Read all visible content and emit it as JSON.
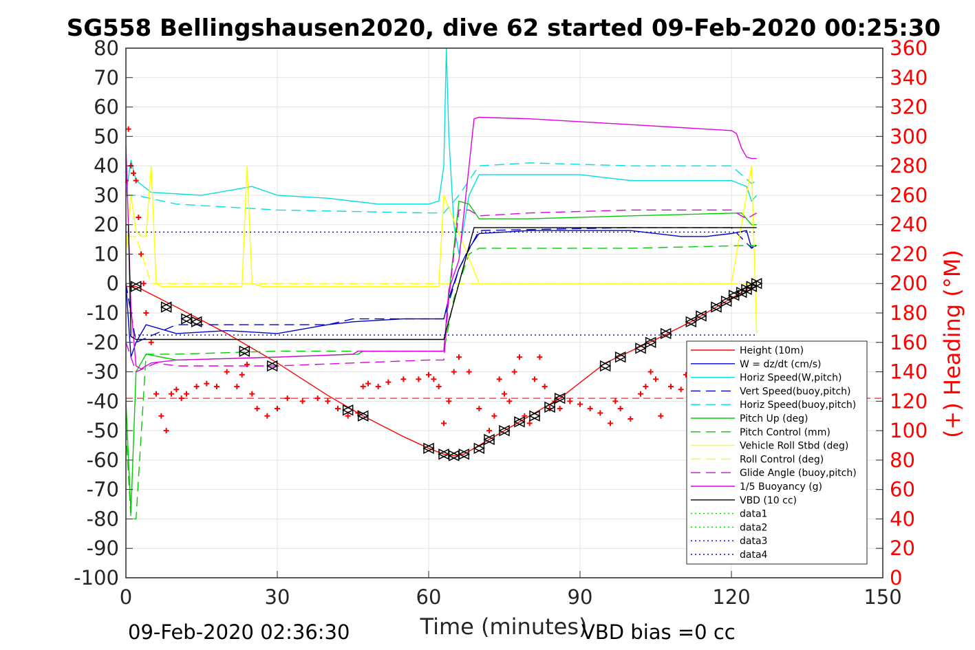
{
  "chart_data": {
    "type": "line",
    "title": "SG558 Bellingshausen2020, dive 62 started 09-Feb-2020 00:25:30",
    "xlabel": "Time (minutes)",
    "ylabel_right": "(+) Heading (°M)",
    "footer_left": "09-Feb-2020 02:36:30",
    "footer_right": "VBD bias =0 cc",
    "xlim": [
      0,
      150
    ],
    "ylim": [
      -100,
      80
    ],
    "ylim_right": [
      0,
      360
    ],
    "xticks": [
      0,
      30,
      60,
      90,
      120,
      150
    ],
    "yticks": [
      -100,
      -90,
      -80,
      -70,
      -60,
      -50,
      -40,
      -30,
      -20,
      -10,
      0,
      10,
      20,
      30,
      40,
      50,
      60,
      70,
      80
    ],
    "yticks_right": [
      0,
      20,
      40,
      60,
      80,
      100,
      120,
      140,
      160,
      180,
      200,
      220,
      240,
      260,
      280,
      300,
      320,
      340,
      360
    ],
    "grid": true,
    "legend_position": "bottom-right",
    "series": [
      {
        "name": "Height (10m)",
        "color": "#ff0000",
        "style": "solid",
        "x": [
          0,
          1,
          2,
          10,
          20,
          30,
          40,
          47,
          55,
          60,
          63,
          65,
          67,
          70,
          75,
          80,
          86,
          95,
          105,
          112,
          118,
          122,
          125
        ],
        "y": [
          -1,
          -1,
          -1,
          -8,
          -17,
          -27,
          -38,
          -45,
          -52,
          -56,
          -58,
          -58.5,
          -58,
          -55,
          -50,
          -45,
          -39,
          -27,
          -19,
          -13,
          -7,
          -3,
          0
        ]
      },
      {
        "name": "W = dz/dt (cm/s)",
        "color": "#0000cc",
        "style": "solid",
        "x": [
          0,
          1,
          2,
          4,
          10,
          20,
          30,
          40,
          45,
          55,
          60,
          63,
          64,
          66,
          68,
          70,
          80,
          90,
          100,
          110,
          115,
          120,
          123,
          124,
          125
        ],
        "y": [
          0,
          -25,
          -20,
          -14,
          -17,
          -16,
          -17,
          -14,
          -13,
          -12,
          -12,
          -12,
          -5,
          5,
          12,
          17,
          18,
          18,
          18,
          16,
          16,
          17,
          18,
          12,
          13
        ]
      },
      {
        "name": "Horiz Speed(W,pitch)",
        "color": "#00e0e0",
        "style": "solid",
        "x": [
          0,
          1,
          2,
          5,
          15,
          25,
          30,
          40,
          50,
          60,
          62,
          63,
          63.5,
          64,
          65,
          66,
          68,
          70,
          80,
          90,
          100,
          110,
          120,
          123,
          124,
          125
        ],
        "y": [
          30,
          42,
          35,
          31,
          30,
          33,
          30,
          29,
          27,
          27,
          28,
          40,
          80,
          50,
          20,
          10,
          30,
          37,
          37,
          37,
          35,
          35,
          35,
          33,
          28,
          30
        ]
      },
      {
        "name": "Vert Speed(buoy,pitch)",
        "color": "#0000cc",
        "style": "dash",
        "x": [
          0,
          2,
          10,
          40,
          45,
          60,
          63,
          66,
          70,
          100,
          120,
          124,
          125
        ],
        "y": [
          0,
          -20,
          -14,
          -14,
          -12,
          -12,
          -12,
          5,
          18,
          19,
          19,
          12,
          14
        ]
      },
      {
        "name": "Horiz Speed(buoy,pitch)",
        "color": "#00e0e0",
        "style": "dash",
        "x": [
          0,
          2,
          10,
          30,
          60,
          63,
          66,
          70,
          80,
          100,
          120,
          124,
          125
        ],
        "y": [
          30,
          30,
          27,
          25,
          24,
          24,
          30,
          40,
          41,
          40,
          40,
          34,
          35
        ]
      },
      {
        "name": "Pitch Up (deg)",
        "color": "#00cc00",
        "style": "solid",
        "x": [
          0,
          1,
          2,
          4,
          10,
          30,
          46,
          47,
          63,
          64,
          66,
          68,
          70,
          80,
          100,
          122,
          124,
          125
        ],
        "y": [
          -40,
          -78,
          -30,
          -24,
          -26,
          -25,
          -24,
          -23,
          -23,
          -4,
          28,
          27,
          22,
          22,
          23,
          24,
          20,
          20
        ]
      },
      {
        "name": "Pitch Control (mm)",
        "color": "#00cc00",
        "style": "dash",
        "x": [
          0,
          1,
          2,
          4,
          10,
          30,
          60,
          63,
          65,
          68,
          70,
          80,
          100,
          125
        ],
        "y": [
          -50,
          -80,
          -80,
          -24,
          -24,
          -23,
          -23,
          -23,
          -5,
          10,
          12,
          12,
          12,
          13
        ]
      },
      {
        "name": "Vehicle Roll Stbd (deg)",
        "color": "#ffff00",
        "style": "solid",
        "x": [
          0,
          1,
          2,
          3,
          4,
          5,
          6,
          7,
          8,
          20,
          23,
          24,
          25,
          27,
          40,
          55,
          62,
          63,
          70,
          80,
          90,
          100,
          110,
          120,
          124,
          125
        ],
        "y": [
          10,
          30,
          18,
          16,
          16,
          40,
          0,
          -1,
          -1,
          -1,
          -1,
          40,
          0,
          -1,
          -1,
          -1,
          -1,
          30,
          0,
          0,
          0,
          0,
          0,
          0,
          40,
          -17
        ]
      },
      {
        "name": "Roll Control (deg)",
        "color": "#ffff00",
        "style": "dash",
        "x": [
          0,
          2,
          5,
          10,
          30,
          60,
          63,
          70,
          100,
          125
        ],
        "y": [
          16,
          16,
          0,
          0,
          0,
          0,
          0,
          0,
          0,
          0
        ]
      },
      {
        "name": "Glide Angle (buoy,pitch)",
        "color": "#e000e0",
        "style": "dash",
        "x": [
          0,
          2,
          6,
          10,
          30,
          60,
          63,
          64,
          66,
          68,
          70,
          80,
          100,
          120,
          123,
          125
        ],
        "y": [
          -20,
          -30,
          -27,
          -28,
          -28,
          -26,
          -26,
          -5,
          25,
          25,
          23,
          24,
          25,
          25,
          22,
          24
        ]
      },
      {
        "name": "1/5 Buoyancy (g)",
        "color": "#e000e0",
        "style": "solid",
        "x": [
          0,
          1,
          2,
          3,
          5,
          10,
          30,
          45,
          46,
          63,
          64,
          66,
          68,
          69,
          70,
          80,
          90,
          100,
          110,
          120,
          121,
          122,
          123,
          124,
          125
        ],
        "y": [
          47,
          -8,
          -28,
          -29,
          -27,
          -26,
          -25,
          -24,
          -23,
          -23,
          -2,
          8,
          40,
          56,
          56.5,
          56,
          55,
          54,
          53,
          52,
          51,
          46,
          43,
          42.5,
          42.5
        ]
      },
      {
        "name": "VBD (10 cc)",
        "color": "#000000",
        "style": "solid",
        "x": [
          0,
          0.5,
          1,
          2,
          3,
          5,
          10,
          30,
          60,
          63,
          69,
          70,
          100,
          125
        ],
        "y": [
          20,
          20,
          -18,
          -19,
          -19,
          -19,
          -19,
          -19,
          -19,
          -19,
          19,
          19,
          19,
          19
        ]
      },
      {
        "name": "data1",
        "color": "#00cc00",
        "style": "dot",
        "x": [],
        "y": []
      },
      {
        "name": "data2",
        "color": "#00cc00",
        "style": "dot",
        "x": [],
        "y": []
      },
      {
        "name": "data3",
        "color": "#0000cc",
        "style": "dot",
        "x": [
          0,
          125
        ],
        "y": [
          17.5,
          17.5
        ]
      },
      {
        "name": "data4",
        "color": "#0000cc",
        "style": "dot",
        "x": [
          0,
          125
        ],
        "y": [
          -17.5,
          -17.5
        ]
      }
    ],
    "heading": {
      "color": "#ff0000",
      "marker": "+",
      "mean": 122,
      "x": [
        0,
        0.5,
        1,
        1.5,
        2,
        2.5,
        3,
        3.5,
        4,
        5,
        6,
        7,
        8,
        9,
        10,
        11,
        12,
        14,
        16,
        18,
        20,
        22,
        23,
        24,
        25,
        26,
        28,
        30,
        32,
        35,
        38,
        40,
        42,
        44,
        46,
        47,
        48,
        50,
        52,
        55,
        58,
        60,
        61,
        62,
        63,
        64,
        65,
        66,
        68,
        70,
        72,
        73,
        74,
        75,
        76,
        77,
        78,
        79,
        80,
        81,
        82,
        83,
        84,
        85,
        86,
        88,
        90,
        92,
        94,
        96,
        97,
        98,
        100,
        102,
        103,
        104,
        105,
        106,
        108,
        110,
        111,
        112,
        114,
        116,
        118,
        120,
        121,
        122,
        123,
        124,
        125
      ],
      "y": [
        270,
        305,
        280,
        275,
        270,
        245,
        220,
        200,
        180,
        160,
        125,
        110,
        100,
        125,
        128,
        122,
        125,
        130,
        132,
        130,
        140,
        130,
        138,
        145,
        125,
        115,
        110,
        115,
        122,
        120,
        122,
        120,
        115,
        110,
        112,
        130,
        132,
        130,
        133,
        135,
        135,
        138,
        135,
        130,
        105,
        120,
        140,
        150,
        140,
        115,
        100,
        110,
        135,
        125,
        120,
        140,
        150,
        110,
        105,
        135,
        150,
        130,
        115,
        120,
        115,
        120,
        118,
        115,
        112,
        105,
        120,
        115,
        108,
        125,
        130,
        140,
        135,
        110,
        130,
        128,
        138,
        130,
        125,
        135,
        140,
        130,
        128,
        140,
        120,
        118,
        115
      ]
    },
    "triangle_markers": {
      "x": [
        2,
        8,
        12,
        14,
        23.5,
        29,
        44,
        47,
        60,
        63,
        65,
        67,
        70,
        72,
        75,
        78,
        81,
        84,
        86,
        95,
        98,
        102,
        104,
        107,
        112,
        114,
        117,
        119,
        120.5,
        122,
        123,
        124,
        125
      ],
      "y": [
        -1,
        -8,
        -12,
        -13,
        -23,
        -28,
        -43,
        -45,
        -56,
        -58,
        -58.5,
        -58,
        -56,
        -53,
        -50,
        -47,
        -45,
        -42,
        -39,
        -28,
        -25,
        -22,
        -20,
        -17,
        -13,
        -11,
        -8,
        -6,
        -4,
        -3,
        -2,
        -1,
        0
      ]
    }
  }
}
